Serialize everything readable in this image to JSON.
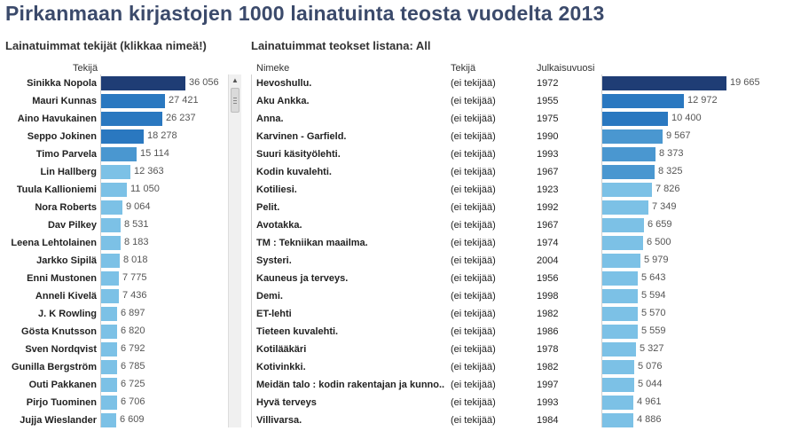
{
  "title": "Pirkanmaan kirjastojen 1000 lainatuinta teosta vuodelta 2013",
  "left_panel": {
    "subtitle": "Lainatuimmat tekijät (klikkaa nimeä!)",
    "column_header": "Tekijä"
  },
  "right_panel": {
    "subtitle": "Lainatuimmat teokset listana: All",
    "columns": {
      "title": "Nimeke",
      "author": "Tekijä",
      "year": "Julkaisuvuosi"
    }
  },
  "chart_data": [
    {
      "type": "bar",
      "orientation": "horizontal",
      "categories": [
        "Sinikka Nopola",
        "Mauri Kunnas",
        "Aino Havukainen",
        "Seppo Jokinen",
        "Timo Parvela",
        "Lin Hallberg",
        "Tuula Kallioniemi",
        "Nora Roberts",
        "Dav Pilkey",
        "Leena Lehtolainen",
        "Jarkko Sipilä",
        "Enni Mustonen",
        "Anneli Kivelä",
        "J. K Rowling",
        "Gösta Knutsson",
        "Sven Nordqvist",
        "Gunilla Bergström",
        "Outi Pakkanen",
        "Pirjo Tuominen",
        "Jujja Wieslander"
      ],
      "values": [
        36056,
        27421,
        26237,
        18278,
        15114,
        12363,
        11050,
        9064,
        8531,
        8183,
        8018,
        7775,
        7436,
        6897,
        6820,
        6792,
        6785,
        6725,
        6706,
        6609
      ],
      "value_labels": [
        "36 056",
        "27 421",
        "26 237",
        "18 278",
        "15 114",
        "12 363",
        "11 050",
        "9 064",
        "8 531",
        "8 183",
        "8 018",
        "7 775",
        "7 436",
        "6 897",
        "6 820",
        "6 792",
        "6 785",
        "6 725",
        "6 706",
        "6 609"
      ],
      "xlim": [
        0,
        36056
      ],
      "colors": {
        "high": "#1f3d75",
        "mid": "#2a78c0",
        "low": "#7cc1e6"
      }
    },
    {
      "type": "bar",
      "orientation": "horizontal",
      "categories": [
        "Hevoshullu.",
        "Aku Ankka.",
        "Anna.",
        "Karvinen - Garfield.",
        "Suuri käsityölehti.",
        "Kodin kuvalehti.",
        "Kotiliesi.",
        "Pelit.",
        "Avotakka.",
        "TM : Tekniikan maailma.",
        "Systeri.",
        "Kauneus ja terveys.",
        "Demi.",
        "ET-lehti",
        "Tieteen kuvalehti.",
        "Kotilääkäri",
        "Kotivinkki.",
        "Meidän talo : kodin rakentajan ja kunno..",
        "Hyvä terveys",
        "Villivarsa."
      ],
      "authors": [
        "(ei tekijää)",
        "(ei tekijää)",
        "(ei tekijää)",
        "(ei tekijää)",
        "(ei tekijää)",
        "(ei tekijää)",
        "(ei tekijää)",
        "(ei tekijää)",
        "(ei tekijää)",
        "(ei tekijää)",
        "(ei tekijää)",
        "(ei tekijää)",
        "(ei tekijää)",
        "(ei tekijää)",
        "(ei tekijää)",
        "(ei tekijää)",
        "(ei tekijää)",
        "(ei tekijää)",
        "(ei tekijää)",
        "(ei tekijää)"
      ],
      "years": [
        "1972",
        "1955",
        "1975",
        "1990",
        "1993",
        "1967",
        "1923",
        "1992",
        "1967",
        "1974",
        "2004",
        "1956",
        "1998",
        "1982",
        "1986",
        "1978",
        "1982",
        "1997",
        "1993",
        "1984"
      ],
      "values": [
        19665,
        12972,
        10400,
        9567,
        8373,
        8325,
        7826,
        7349,
        6659,
        6500,
        5979,
        5643,
        5594,
        5570,
        5559,
        5327,
        5076,
        5044,
        4961,
        4886
      ],
      "value_labels": [
        "19 665",
        "12 972",
        "10 400",
        "9 567",
        "8 373",
        "8 325",
        "7 826",
        "7 349",
        "6 659",
        "6 500",
        "5 979",
        "5 643",
        "5 594",
        "5 570",
        "5 559",
        "5 327",
        "5 076",
        "5 044",
        "4 961",
        "4 886"
      ],
      "xlim": [
        0,
        19665
      ],
      "colors": {
        "high": "#1f3d75",
        "mid": "#2a78c0",
        "low": "#7cc1e6"
      }
    }
  ]
}
